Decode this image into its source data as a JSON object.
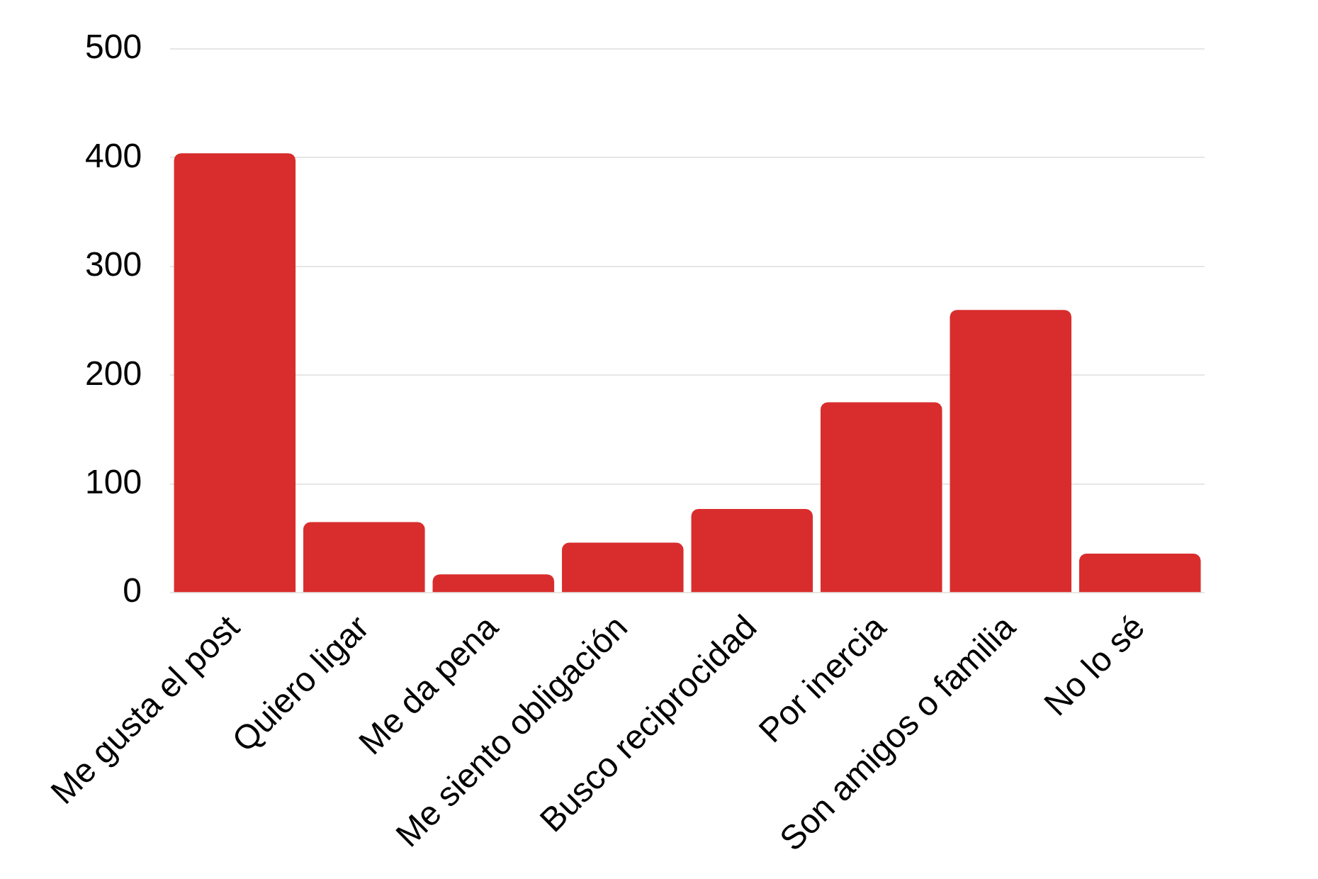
{
  "chart_data": {
    "type": "bar",
    "categories": [
      "Me gusta el post",
      "Quiero ligar",
      "Me da pena",
      "Me siento obligación",
      "Busco reciprocidad",
      "Por inercia",
      "Son amigos o familia",
      "No lo sé"
    ],
    "values": [
      404,
      65,
      17,
      46,
      77,
      175,
      260,
      36
    ],
    "color": "#d92d2d",
    "ylim": [
      0,
      500
    ],
    "yticks": [
      0,
      100,
      200,
      300,
      400,
      500
    ],
    "grid": "y"
  }
}
